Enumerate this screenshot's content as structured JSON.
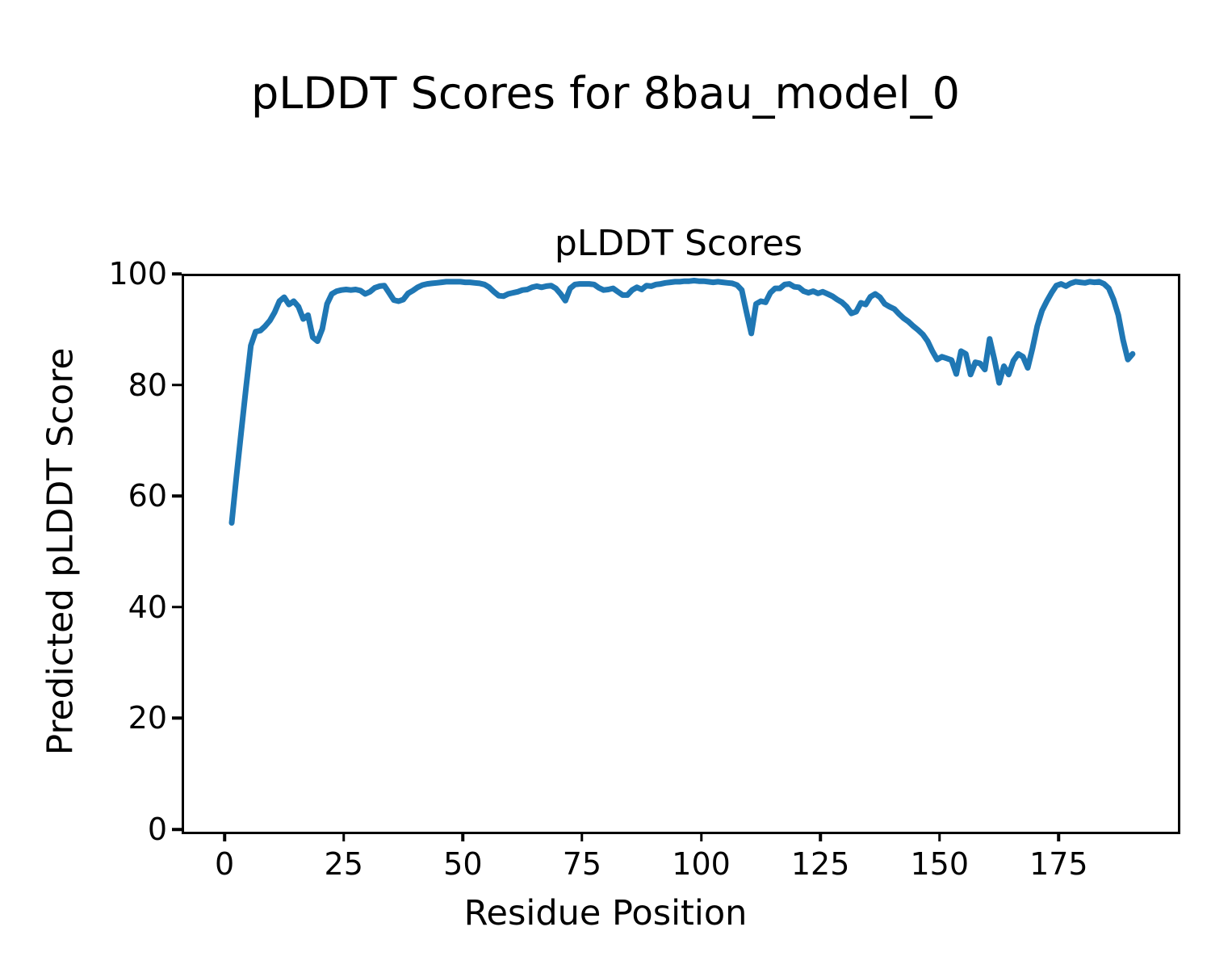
{
  "chart_data": {
    "type": "line",
    "title": "pLDDT Scores for 8bau_model_0",
    "axes_title": "pLDDT Scores",
    "xlabel": "Residue Position",
    "ylabel": "Predicted pLDDT Score",
    "series_name": "pLDDT",
    "x_start": 1,
    "x_step": 1,
    "values": [
      55.6,
      64.0,
      72.0,
      80.0,
      87.5,
      90.0,
      90.2,
      91.0,
      92.0,
      93.5,
      95.5,
      96.2,
      94.9,
      95.5,
      94.5,
      92.3,
      93.0,
      89.0,
      88.3,
      90.5,
      95.0,
      96.8,
      97.3,
      97.5,
      97.6,
      97.5,
      97.6,
      97.4,
      96.8,
      97.2,
      97.9,
      98.2,
      98.3,
      97.0,
      95.7,
      95.5,
      95.8,
      96.9,
      97.4,
      98.0,
      98.4,
      98.6,
      98.7,
      98.8,
      98.9,
      99.0,
      99.0,
      99.0,
      99.0,
      98.9,
      98.9,
      98.8,
      98.7,
      98.5,
      98.0,
      97.2,
      96.5,
      96.4,
      96.8,
      97.0,
      97.2,
      97.5,
      97.6,
      98.0,
      98.2,
      98.0,
      98.2,
      98.3,
      97.8,
      96.8,
      95.6,
      97.8,
      98.5,
      98.6,
      98.6,
      98.6,
      98.5,
      97.9,
      97.5,
      97.6,
      97.8,
      97.2,
      96.6,
      96.6,
      97.5,
      98.0,
      97.6,
      98.3,
      98.2,
      98.5,
      98.6,
      98.8,
      98.9,
      99.0,
      99.0,
      99.1,
      99.1,
      99.2,
      99.1,
      99.1,
      99.0,
      98.9,
      99.0,
      98.9,
      98.8,
      98.7,
      98.4,
      97.5,
      93.5,
      89.7,
      95.0,
      95.5,
      95.3,
      97.0,
      97.8,
      97.8,
      98.5,
      98.6,
      98.1,
      98.0,
      97.3,
      97.0,
      97.3,
      96.9,
      97.2,
      96.8,
      96.4,
      95.8,
      95.3,
      94.5,
      93.3,
      93.6,
      95.2,
      94.9,
      96.3,
      96.8,
      96.2,
      95.0,
      94.5,
      94.1,
      93.2,
      92.4,
      91.8,
      91.0,
      90.3,
      89.5,
      88.3,
      86.5,
      85.0,
      85.5,
      85.2,
      84.9,
      82.4,
      86.5,
      86.0,
      82.3,
      84.5,
      84.3,
      83.2,
      88.7,
      85.0,
      80.8,
      83.8,
      82.3,
      84.8,
      86.0,
      85.5,
      83.5,
      87.0,
      91.0,
      93.8,
      95.5,
      97.0,
      98.3,
      98.6,
      98.2,
      98.7,
      99.0,
      98.9,
      98.8,
      99.0,
      98.9,
      99.0,
      98.6,
      97.8,
      95.8,
      93.0,
      88.5,
      85.0,
      86.0
    ],
    "xticks": [
      0,
      25,
      50,
      75,
      100,
      125,
      150,
      175
    ],
    "yticks": [
      0,
      20,
      40,
      60,
      80,
      100
    ],
    "xlim": [
      -9.0,
      199.5
    ],
    "ylim": [
      0,
      100
    ],
    "line_color": "#1f77b4",
    "line_width": 7,
    "grid": false,
    "legend": "none",
    "background_color": "#ffffff",
    "axis_color": "#000000"
  }
}
